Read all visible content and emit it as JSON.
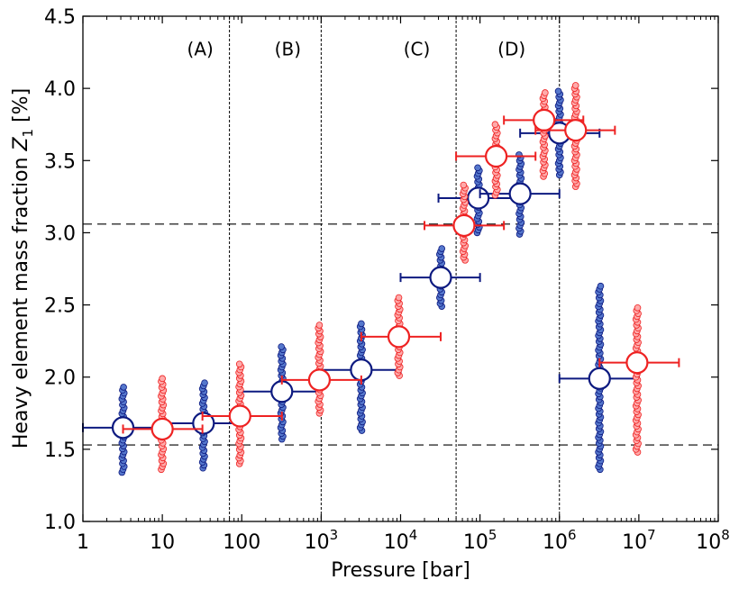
{
  "chart_data": {
    "type": "scatter",
    "xlabel": "Pressure [bar]",
    "ylabel": "Heavy element mass fraction Z1 [%]",
    "xscale": "log",
    "xlim": [
      1,
      100000000
    ],
    "ylim": [
      1.0,
      4.5
    ],
    "xticks": [
      {
        "value": 1,
        "label": "1"
      },
      {
        "value": 10,
        "label": "10"
      },
      {
        "value": 100,
        "label": "100"
      },
      {
        "value": 1000,
        "label": "10",
        "exp": "3"
      },
      {
        "value": 10000,
        "label": "10",
        "exp": "4"
      },
      {
        "value": 100000,
        "label": "10",
        "exp": "5"
      },
      {
        "value": 1000000,
        "label": "10",
        "exp": "6"
      },
      {
        "value": 10000000,
        "label": "10",
        "exp": "7"
      },
      {
        "value": 100000000,
        "label": "10",
        "exp": "8"
      }
    ],
    "yticks": [
      "1.0",
      "1.5",
      "2.0",
      "2.5",
      "3.0",
      "3.5",
      "4.0",
      "4.5"
    ],
    "horizontal_dashed_lines": [
      1.53,
      3.06
    ],
    "vertical_dotted_lines": [
      70,
      1000,
      50000,
      1000000
    ],
    "region_labels": [
      {
        "text": "(A)",
        "x": 30
      },
      {
        "text": "(B)",
        "x": 380
      },
      {
        "text": "(C)",
        "x": 16000
      },
      {
        "text": "(D)",
        "x": 250000
      }
    ],
    "region_label_y": 4.23,
    "series": [
      {
        "color": "#0d1a80",
        "fill": "#5577cc",
        "points": [
          {
            "x": 3.2,
            "y": 1.65,
            "xerr": [
              1,
              10
            ],
            "ymin": 1.34,
            "ymax": 1.93
          },
          {
            "x": 33,
            "y": 1.68,
            "xerr": [
              10,
              100
            ],
            "ymin": 1.37,
            "ymax": 1.96
          },
          {
            "x": 320,
            "y": 1.9,
            "xerr": [
              100,
              1000
            ],
            "ymin": 1.57,
            "ymax": 2.21
          },
          {
            "x": 3200,
            "y": 2.05,
            "xerr": [
              1000,
              10000
            ],
            "ymin": 1.63,
            "ymax": 2.37
          },
          {
            "x": 32000,
            "y": 2.69,
            "xerr": [
              10000,
              100000
            ],
            "ymin": 2.49,
            "ymax": 2.89
          },
          {
            "x": 95000,
            "y": 3.24,
            "xerr": [
              30000,
              300000
            ],
            "ymin": 3.0,
            "ymax": 3.45
          },
          {
            "x": 320000,
            "y": 3.27,
            "xerr": [
              100000,
              1000000
            ],
            "ymin": 2.99,
            "ymax": 3.54
          },
          {
            "x": 1000000,
            "y": 3.69,
            "xerr": [
              320000,
              3200000
            ],
            "ymin": 3.4,
            "ymax": 3.98
          },
          {
            "x": 3200000,
            "y": 1.99,
            "xerr": [
              1000000,
              10000000
            ],
            "ymin": 1.36,
            "ymax": 2.63
          }
        ]
      },
      {
        "color": "#ee2222",
        "fill": "#ffaaaa",
        "points": [
          {
            "x": 10,
            "y": 1.64,
            "xerr": [
              3.2,
              32
            ],
            "ymin": 1.36,
            "ymax": 1.99
          },
          {
            "x": 95,
            "y": 1.73,
            "xerr": [
              32,
              320
            ],
            "ymin": 1.4,
            "ymax": 2.09
          },
          {
            "x": 950,
            "y": 1.98,
            "xerr": [
              320,
              3200
            ],
            "ymin": 1.75,
            "ymax": 2.36
          },
          {
            "x": 9500,
            "y": 2.28,
            "xerr": [
              3200,
              32000
            ],
            "ymin": 2.01,
            "ymax": 2.55
          },
          {
            "x": 63000,
            "y": 3.05,
            "xerr": [
              20000,
              200000
            ],
            "ymin": 2.81,
            "ymax": 3.33
          },
          {
            "x": 160000,
            "y": 3.53,
            "xerr": [
              50000,
              500000
            ],
            "ymin": 3.26,
            "ymax": 3.75
          },
          {
            "x": 640000,
            "y": 3.78,
            "xerr": [
              200000,
              2000000
            ],
            "ymin": 3.39,
            "ymax": 3.97
          },
          {
            "x": 1600000,
            "y": 3.71,
            "xerr": [
              500000,
              5000000
            ],
            "ymin": 3.32,
            "ymax": 4.02
          },
          {
            "x": 9500000,
            "y": 2.1,
            "xerr": [
              3200000,
              32000000
            ],
            "ymin": 1.48,
            "ymax": 2.48
          }
        ]
      }
    ]
  }
}
